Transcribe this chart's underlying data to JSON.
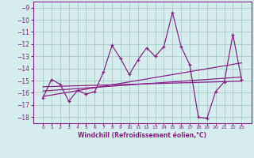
{
  "x": [
    0,
    1,
    2,
    3,
    4,
    5,
    6,
    7,
    8,
    9,
    10,
    11,
    12,
    13,
    14,
    15,
    16,
    17,
    18,
    19,
    20,
    21,
    22,
    23
  ],
  "windchill": [
    -16.4,
    -14.9,
    -15.3,
    -16.7,
    -15.8,
    -16.1,
    -15.9,
    -14.3,
    -12.1,
    -13.2,
    -14.5,
    -13.3,
    -12.3,
    -13.0,
    -12.2,
    -9.4,
    -12.2,
    -13.7,
    -18.0,
    -18.1,
    -15.9,
    -15.1,
    -11.2,
    -14.9
  ],
  "reg_line1": [
    -15.5,
    -15.48,
    -15.46,
    -15.44,
    -15.42,
    -15.4,
    -15.38,
    -15.36,
    -15.34,
    -15.32,
    -15.3,
    -15.28,
    -15.26,
    -15.24,
    -15.22,
    -15.2,
    -15.18,
    -15.16,
    -15.14,
    -15.12,
    -15.1,
    -15.08,
    -15.06,
    -15.04
  ],
  "reg_line2": [
    -16.3,
    -16.18,
    -16.06,
    -15.94,
    -15.82,
    -15.7,
    -15.58,
    -15.46,
    -15.34,
    -15.22,
    -15.1,
    -14.98,
    -14.86,
    -14.74,
    -14.62,
    -14.5,
    -14.38,
    -14.26,
    -14.14,
    -14.02,
    -13.9,
    -13.78,
    -13.66,
    -13.54
  ],
  "reg_line3": [
    -15.85,
    -15.8,
    -15.75,
    -15.7,
    -15.65,
    -15.6,
    -15.55,
    -15.5,
    -15.45,
    -15.4,
    -15.35,
    -15.3,
    -15.25,
    -15.2,
    -15.15,
    -15.1,
    -15.05,
    -15.0,
    -14.95,
    -14.9,
    -14.85,
    -14.8,
    -14.75,
    -14.7
  ],
  "line_color": "#882288",
  "bg_color": "#d5eeed",
  "grid_color": "#aacccc",
  "xlabel": "Windchill (Refroidissement éolien,°C)",
  "ylim": [
    -18.5,
    -8.5
  ],
  "yticks": [
    -18,
    -17,
    -16,
    -15,
    -14,
    -13,
    -12,
    -11,
    -10,
    -9
  ],
  "xtick_labels": [
    "0",
    "1",
    "2",
    "3",
    "4",
    "5",
    "6",
    "7",
    "8",
    "9",
    "10",
    "11",
    "12",
    "13",
    "14",
    "15",
    "16",
    "17",
    "18",
    "19",
    "20",
    "21",
    "22",
    "23"
  ]
}
